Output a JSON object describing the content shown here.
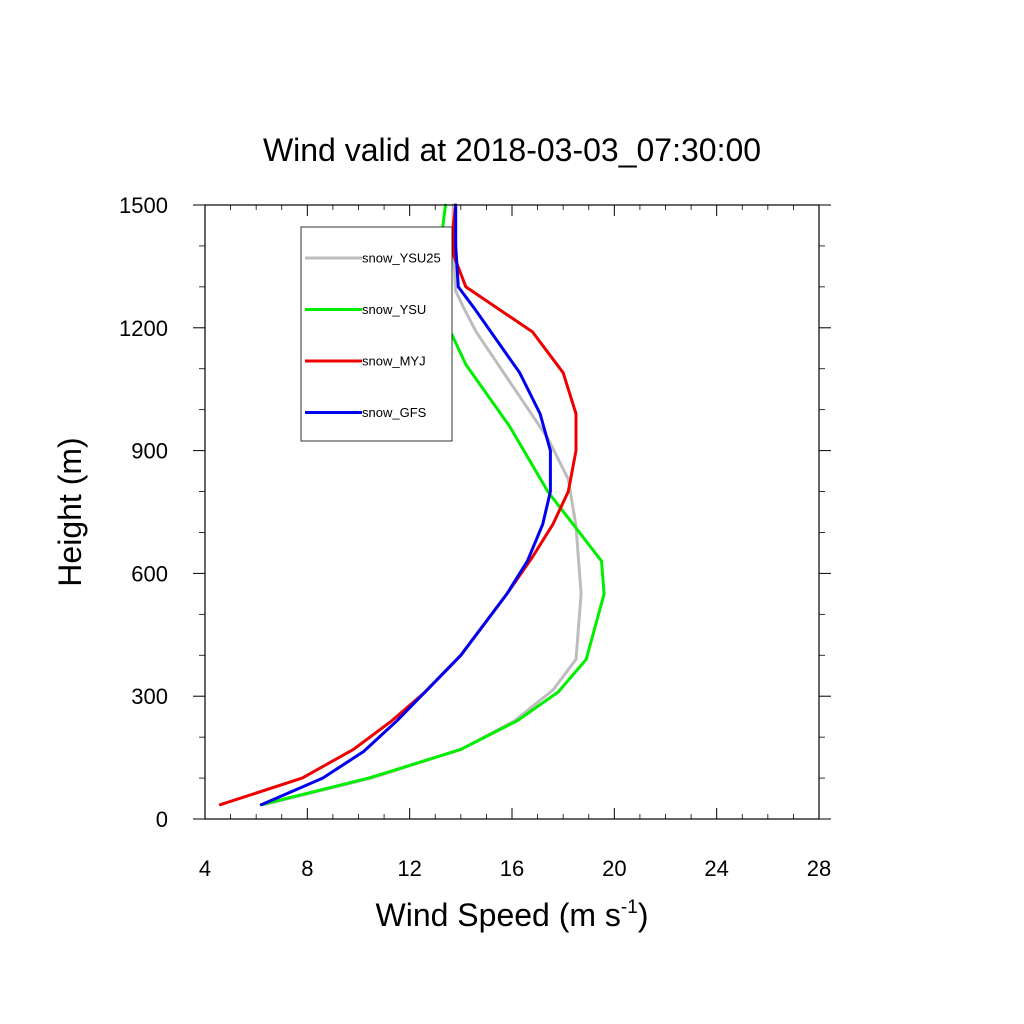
{
  "chart_data": {
    "type": "line",
    "title": "Wind valid at 2018-03-03_07:30:00",
    "xlabel": "Wind Speed (m s",
    "xlabel_sup": "-1",
    "xlabel_end": ")",
    "ylabel": "Height (m)",
    "xlim": [
      4,
      28
    ],
    "ylim": [
      0,
      1500
    ],
    "xticks": [
      4,
      8,
      12,
      16,
      20,
      24,
      28
    ],
    "yticks": [
      0,
      300,
      600,
      900,
      1200,
      1500
    ],
    "legend_position": "top-left",
    "series": [
      {
        "name": "snow_YSU25",
        "color": "#bdbdbd",
        "x": [
          6.3,
          10.5,
          14.0,
          16.1,
          17.6,
          18.5,
          18.7,
          18.5,
          18.2,
          17.4,
          16.0,
          14.6,
          14.1,
          13.8,
          13.7,
          13.7
        ],
        "y": [
          35,
          100,
          170,
          240,
          315,
          390,
          550,
          715,
          830,
          930,
          1060,
          1190,
          1250,
          1290,
          1400,
          1500
        ]
      },
      {
        "name": "snow_YSU",
        "color": "#00ee00",
        "x": [
          6.2,
          10.4,
          14.0,
          16.2,
          17.8,
          18.9,
          19.6,
          19.5,
          17.4,
          15.9,
          14.2,
          13.6,
          13.1,
          13.2,
          13.3,
          13.4
        ],
        "y": [
          35,
          100,
          170,
          240,
          310,
          390,
          550,
          630,
          800,
          960,
          1110,
          1190,
          1300,
          1380,
          1450,
          1500
        ]
      },
      {
        "name": "snow_MYJ",
        "color": "#ee0000",
        "x": [
          4.6,
          7.8,
          9.8,
          11.3,
          12.6,
          14.0,
          15.8,
          16.8,
          17.6,
          18.2,
          18.5,
          18.5,
          18.0,
          16.8,
          14.2,
          13.7,
          13.7,
          13.8
        ],
        "y": [
          35,
          100,
          170,
          240,
          310,
          400,
          550,
          640,
          720,
          800,
          900,
          990,
          1090,
          1190,
          1300,
          1380,
          1450,
          1500
        ]
      },
      {
        "name": "snow_GFS",
        "color": "#0000ee",
        "x": [
          6.2,
          8.6,
          10.2,
          11.5,
          12.6,
          14.0,
          15.8,
          16.6,
          17.2,
          17.5,
          17.5,
          17.1,
          16.3,
          14.5,
          13.9,
          13.8,
          13.8
        ],
        "y": [
          35,
          100,
          165,
          240,
          310,
          400,
          550,
          630,
          720,
          800,
          900,
          990,
          1090,
          1250,
          1300,
          1400,
          1500
        ]
      }
    ]
  }
}
